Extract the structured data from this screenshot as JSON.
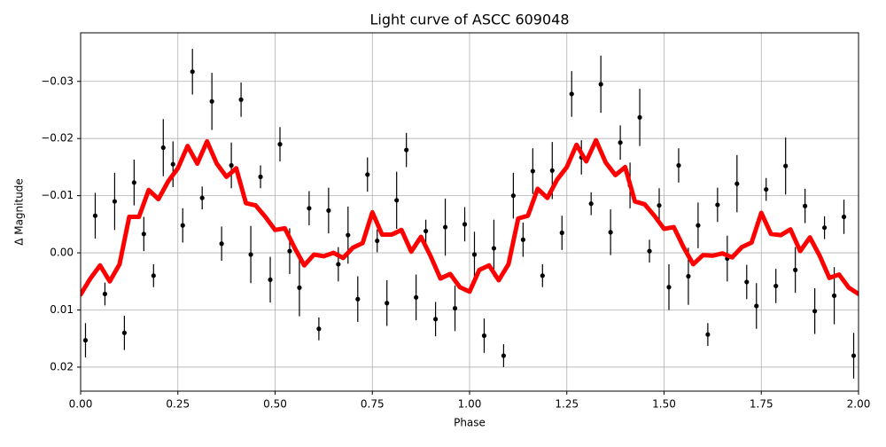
{
  "chart_data": {
    "type": "scatter",
    "title": "Light curve of ASCC 609048",
    "xlabel": "Phase",
    "ylabel": "Δ Magnitude",
    "xlim": [
      0,
      2
    ],
    "ylim": [
      -0.0385,
      0.0242
    ],
    "y_inverted": true,
    "grid": true,
    "xticks": [
      {
        "value": 0,
        "label": "0.00"
      },
      0.25,
      {
        "value": 0.5,
        "label": "0.50"
      },
      0.75,
      {
        "value": 1,
        "label": "1.00"
      },
      1.25,
      {
        "value": 1.5,
        "label": "1.50"
      },
      1.75,
      {
        "value": 2,
        "label": "2.00"
      }
    ],
    "yticks": [
      {
        "value": -0.03,
        "label": "−0.03"
      },
      {
        "value": -0.02,
        "label": "−0.02"
      },
      {
        "value": -0.01,
        "label": "−0.01"
      },
      {
        "value": 0,
        "label": "0.00"
      },
      0.01,
      0.02
    ],
    "series": [
      {
        "type": "errorbar",
        "color": "#000000",
        "x": [
          0.0125,
          0.0375,
          0.0625,
          0.0875,
          0.1125,
          0.1375,
          0.1625,
          0.1875,
          0.2125,
          0.2375,
          0.2625,
          0.2875,
          0.3125,
          0.3375,
          0.3625,
          0.3875,
          0.4125,
          0.4375,
          0.4625,
          0.4875,
          0.5125,
          0.5375,
          0.5625,
          0.5875,
          0.6125,
          0.6375,
          0.6625,
          0.6875,
          0.7125,
          0.7375,
          0.7625,
          0.7875,
          0.8125,
          0.8375,
          0.8625,
          0.8875,
          0.9125,
          0.9375,
          0.9625,
          0.9875,
          1.0125,
          1.0375,
          1.0625,
          1.0875,
          1.1125,
          1.1375,
          1.1625,
          1.1875,
          1.2125,
          1.2375,
          1.2625,
          1.2875,
          1.3125,
          1.3375,
          1.3625,
          1.3875,
          1.4125,
          1.4375,
          1.4625,
          1.4875,
          1.5125,
          1.5375,
          1.5625,
          1.5875,
          1.6125,
          1.6375,
          1.6625,
          1.6875,
          1.7125,
          1.7375,
          1.7625,
          1.7875,
          1.8125,
          1.8375,
          1.8625,
          1.8875,
          1.9125,
          1.9375,
          1.9625,
          1.9875
        ],
        "values": [
          0.0153,
          -0.0065,
          0.0072,
          -0.009,
          0.014,
          -0.0123,
          -0.0033,
          0.004,
          -0.0184,
          -0.0155,
          -0.0048,
          -0.0317,
          -0.0096,
          -0.0265,
          -0.0016,
          -0.0153,
          -0.0268,
          0.0003,
          -0.0133,
          0.0047,
          -0.019,
          -0.0003,
          0.0061,
          -0.0078,
          0.0133,
          -0.0074,
          0.002,
          -0.0031,
          0.0081,
          -0.0137,
          -0.0021,
          0.0088,
          -0.0092,
          -0.018,
          0.0078,
          -0.0038,
          0.0116,
          -0.0045,
          0.0097,
          -0.005,
          0.0003,
          0.0145,
          -0.0008,
          0.018,
          -0.01,
          -0.0023,
          -0.0143,
          0.004,
          -0.0144,
          -0.0035,
          -0.0278,
          -0.0167,
          -0.0086,
          -0.0295,
          -0.0036,
          -0.0193,
          -0.0118,
          -0.0237,
          -0.0003,
          -0.0083,
          0.006,
          -0.0153,
          0.0041,
          -0.0048,
          0.0143,
          -0.0084,
          0.001,
          -0.0121,
          0.0051,
          0.0093,
          -0.0111,
          0.0058,
          -0.0152,
          0.003,
          -0.0082,
          0.0102,
          -0.0044,
          0.0075,
          -0.0063,
          0.018
        ],
        "yerr": [
          0.003,
          0.004,
          0.002,
          0.005,
          0.003,
          0.004,
          0.003,
          0.002,
          0.005,
          0.004,
          0.003,
          0.004,
          0.002,
          0.005,
          0.003,
          0.004,
          0.003,
          0.005,
          0.002,
          0.004,
          0.003,
          0.004,
          0.005,
          0.003,
          0.002,
          0.004,
          0.003,
          0.005,
          0.004,
          0.003,
          0.002,
          0.004,
          0.005,
          0.003,
          0.004,
          0.002,
          0.003,
          0.005,
          0.004,
          0.003,
          0.004,
          0.003,
          0.005,
          0.002,
          0.004,
          0.003,
          0.004,
          0.002,
          0.005,
          0.003,
          0.004,
          0.003,
          0.002,
          0.005,
          0.004,
          0.003,
          0.004,
          0.005,
          0.002,
          0.003,
          0.004,
          0.003,
          0.005,
          0.004,
          0.002,
          0.003,
          0.004,
          0.005,
          0.003,
          0.004,
          0.002,
          0.003,
          0.005,
          0.004,
          0.003,
          0.004,
          0.002,
          0.005,
          0.003,
          0.004
        ]
      },
      {
        "type": "line",
        "color": "#ff0000",
        "x": [
          0,
          0.025,
          0.05,
          0.075,
          0.1,
          0.125,
          0.15,
          0.175,
          0.2,
          0.225,
          0.25,
          0.275,
          0.3,
          0.325,
          0.35,
          0.375,
          0.4,
          0.425,
          0.45,
          0.475,
          0.5,
          0.525,
          0.55,
          0.575,
          0.6,
          0.625,
          0.65,
          0.675,
          0.7,
          0.725,
          0.75,
          0.775,
          0.8,
          0.825,
          0.85,
          0.875,
          0.9,
          0.925,
          0.95,
          0.975,
          1,
          1.025,
          1.05,
          1.075,
          1.1,
          1.125,
          1.15,
          1.175,
          1.2,
          1.225,
          1.25,
          1.275,
          1.3,
          1.325,
          1.35,
          1.375,
          1.4,
          1.425,
          1.45,
          1.475,
          1.5,
          1.525,
          1.55,
          1.575,
          1.6,
          1.625,
          1.65,
          1.675,
          1.7,
          1.725,
          1.75,
          1.775,
          1.8,
          1.825,
          1.85,
          1.875,
          1.9,
          1.925,
          1.95,
          1.975,
          2
        ],
        "values": [
          0.0073,
          0.0045,
          0.0022,
          0.005,
          0.002,
          -0.0063,
          -0.0063,
          -0.011,
          -0.0094,
          -0.0125,
          -0.0148,
          -0.0187,
          -0.0156,
          -0.0195,
          -0.0156,
          -0.0133,
          -0.0148,
          -0.0087,
          -0.0083,
          -0.0063,
          -0.004,
          -0.0043,
          -0.0009,
          0.0022,
          0.0003,
          0.0006,
          0,
          0.0009,
          -0.0009,
          -0.0017,
          -0.0071,
          -0.0032,
          -0.0032,
          -0.004,
          -0.0002,
          -0.0028,
          0.0006,
          0.0045,
          0.0037,
          0.006,
          0.0068,
          0.003,
          0.0022,
          0.0048,
          0.002,
          -0.006,
          -0.0065,
          -0.0112,
          -0.0096,
          -0.0128,
          -0.015,
          -0.0189,
          -0.016,
          -0.0197,
          -0.0158,
          -0.0136,
          -0.015,
          -0.009,
          -0.0085,
          -0.0065,
          -0.0042,
          -0.0045,
          -0.001,
          0.002,
          0.0004,
          0.0005,
          0.0001,
          0.0008,
          -0.001,
          -0.0018,
          -0.007,
          -0.0033,
          -0.0031,
          -0.0041,
          -0.0003,
          -0.0027,
          0.0005,
          0.0044,
          0.0038,
          0.0061,
          0.0072
        ]
      }
    ]
  }
}
